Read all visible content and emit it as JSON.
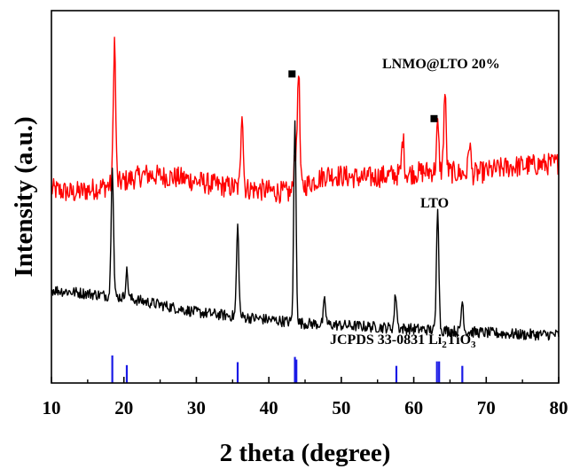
{
  "chart_data": {
    "type": "line",
    "title": "",
    "xlabel": "2 theta (degree)",
    "ylabel": "Intensity (a.u.)",
    "xlim": [
      10,
      80
    ],
    "x_ticks": [
      10,
      20,
      30,
      40,
      50,
      60,
      70,
      80
    ],
    "ylim": [
      0,
      100
    ],
    "grid": false,
    "series": [
      {
        "name": "LNMO@LTO 20%",
        "color": "#ff0000",
        "baseline": [
          [
            10,
            52
          ],
          [
            13,
            51
          ],
          [
            18,
            53
          ],
          [
            23,
            56
          ],
          [
            28,
            55
          ],
          [
            33,
            53
          ],
          [
            38,
            52
          ],
          [
            43,
            51
          ],
          [
            48,
            56
          ],
          [
            53,
            55
          ],
          [
            58,
            56
          ],
          [
            63,
            57
          ],
          [
            68,
            56
          ],
          [
            73,
            58
          ],
          [
            80,
            59
          ]
        ],
        "noise": 3,
        "peaks": [
          [
            18.7,
            92
          ],
          [
            36.3,
            74
          ],
          [
            44.1,
            85
          ],
          [
            43.6,
            62
          ],
          [
            58.5,
            66
          ],
          [
            63.3,
            69
          ],
          [
            64.3,
            78
          ],
          [
            67.7,
            65
          ]
        ]
      },
      {
        "name": "LTO",
        "color": "#000000",
        "baseline": [
          [
            10,
            25
          ],
          [
            15,
            24
          ],
          [
            20,
            23
          ],
          [
            25,
            21
          ],
          [
            30,
            19
          ],
          [
            35,
            18
          ],
          [
            40,
            17
          ],
          [
            45,
            16
          ],
          [
            50,
            15.5
          ],
          [
            55,
            15
          ],
          [
            60,
            14.5
          ],
          [
            65,
            14
          ],
          [
            70,
            13.5
          ],
          [
            75,
            13
          ],
          [
            80,
            13
          ]
        ],
        "noise": 1.5,
        "peaks": [
          [
            18.4,
            59
          ],
          [
            20.4,
            30
          ],
          [
            35.7,
            42
          ],
          [
            43.6,
            70
          ],
          [
            47.7,
            22
          ],
          [
            57.5,
            24
          ],
          [
            63.3,
            48
          ],
          [
            66.7,
            22
          ]
        ]
      }
    ],
    "reference": {
      "name": "JCPDS 33-0831 Li2TiO3",
      "color": "#1a1ae6",
      "lines": [
        [
          18.4,
          7.4
        ],
        [
          20.4,
          4.8
        ],
        [
          35.7,
          5.6
        ],
        [
          43.6,
          7
        ],
        [
          43.8,
          6.3
        ],
        [
          57.6,
          4.6
        ],
        [
          63.2,
          5.8
        ],
        [
          63.5,
          5.8
        ],
        [
          66.7,
          4.6
        ]
      ]
    },
    "labels": {
      "top_series": "LNMO@LTO  20%",
      "bottom_series": "LTO",
      "reference_prefix": "JCPDS 33-0831 Li",
      "reference_sub1": "2",
      "reference_mid": "TiO",
      "reference_sub2": "3"
    },
    "markers": [
      {
        "symbol": "square",
        "x": 43.2,
        "y": 83,
        "series": "LNMO@LTO 20%"
      },
      {
        "symbol": "square",
        "x": 62.8,
        "y": 71,
        "series": "LNMO@LTO 20%"
      }
    ]
  }
}
